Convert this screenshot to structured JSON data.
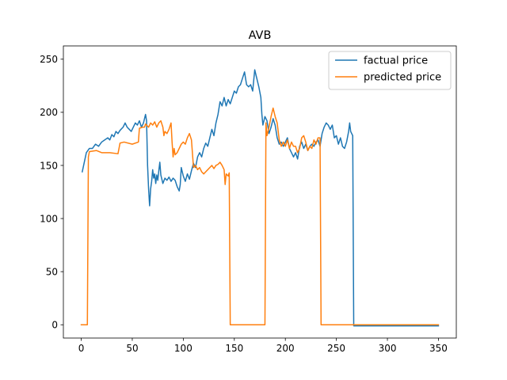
{
  "chart_data": {
    "type": "line",
    "title": "AVB",
    "xlabel": "",
    "ylabel": "",
    "xlim": [
      -17.5,
      367.5
    ],
    "ylim": [
      -12.5,
      262.5
    ],
    "xticks": [
      0,
      50,
      100,
      150,
      200,
      250,
      300,
      350
    ],
    "yticks": [
      0,
      50,
      100,
      150,
      200,
      250
    ],
    "legend": "top-right",
    "grid": false,
    "series": [
      {
        "name": "factual price",
        "color": "#1f77b4",
        "points": [
          [
            1,
            144
          ],
          [
            3,
            153
          ],
          [
            5,
            162
          ],
          [
            8,
            166
          ],
          [
            11,
            166
          ],
          [
            14,
            170
          ],
          [
            17,
            168
          ],
          [
            20,
            172
          ],
          [
            23,
            174
          ],
          [
            26,
            176
          ],
          [
            28,
            174
          ],
          [
            30,
            179
          ],
          [
            32,
            177
          ],
          [
            34,
            182
          ],
          [
            36,
            180
          ],
          [
            38,
            183
          ],
          [
            41,
            186
          ],
          [
            43,
            190
          ],
          [
            45,
            186
          ],
          [
            47,
            184
          ],
          [
            49,
            182
          ],
          [
            51,
            186
          ],
          [
            53,
            190
          ],
          [
            55,
            188
          ],
          [
            57,
            192
          ],
          [
            59,
            186
          ],
          [
            61,
            190
          ],
          [
            63,
            198
          ],
          [
            64,
            192
          ],
          [
            65,
            150
          ],
          [
            66,
            128
          ],
          [
            67,
            112
          ],
          [
            68,
            128
          ],
          [
            69,
            135
          ],
          [
            70,
            146
          ],
          [
            71,
            138
          ],
          [
            72,
            142
          ],
          [
            73,
            133
          ],
          [
            74,
            141
          ],
          [
            75,
            136
          ],
          [
            76,
            145
          ],
          [
            77,
            153
          ],
          [
            78,
            141
          ],
          [
            79,
            137
          ],
          [
            80,
            133
          ],
          [
            82,
            138
          ],
          [
            84,
            136
          ],
          [
            86,
            139
          ],
          [
            88,
            135
          ],
          [
            90,
            138
          ],
          [
            92,
            136
          ],
          [
            94,
            130
          ],
          [
            96,
            126
          ],
          [
            97,
            132
          ],
          [
            98,
            148
          ],
          [
            100,
            140
          ],
          [
            102,
            135
          ],
          [
            104,
            142
          ],
          [
            106,
            137
          ],
          [
            108,
            145
          ],
          [
            110,
            152
          ],
          [
            112,
            148
          ],
          [
            114,
            158
          ],
          [
            116,
            162
          ],
          [
            118,
            158
          ],
          [
            120,
            166
          ],
          [
            122,
            171
          ],
          [
            124,
            168
          ],
          [
            126,
            176
          ],
          [
            128,
            184
          ],
          [
            130,
            178
          ],
          [
            132,
            190
          ],
          [
            134,
            198
          ],
          [
            136,
            210
          ],
          [
            138,
            206
          ],
          [
            140,
            214
          ],
          [
            142,
            206
          ],
          [
            144,
            212
          ],
          [
            146,
            208
          ],
          [
            148,
            214
          ],
          [
            150,
            220
          ],
          [
            152,
            218
          ],
          [
            154,
            224
          ],
          [
            156,
            226
          ],
          [
            158,
            232
          ],
          [
            160,
            238
          ],
          [
            162,
            226
          ],
          [
            164,
            224
          ],
          [
            166,
            226
          ],
          [
            168,
            220
          ],
          [
            170,
            240
          ],
          [
            172,
            232
          ],
          [
            174,
            224
          ],
          [
            176,
            214
          ],
          [
            177,
            198
          ],
          [
            178,
            188
          ],
          [
            180,
            196
          ],
          [
            182,
            192
          ],
          [
            184,
            180
          ],
          [
            186,
            186
          ],
          [
            188,
            194
          ],
          [
            190,
            188
          ],
          [
            192,
            176
          ],
          [
            194,
            170
          ],
          [
            196,
            172
          ],
          [
            198,
            168
          ],
          [
            200,
            172
          ],
          [
            202,
            176
          ],
          [
            204,
            166
          ],
          [
            206,
            162
          ],
          [
            208,
            158
          ],
          [
            210,
            162
          ],
          [
            212,
            156
          ],
          [
            214,
            168
          ],
          [
            216,
            172
          ],
          [
            218,
            166
          ],
          [
            220,
            170
          ],
          [
            222,
            164
          ],
          [
            224,
            168
          ],
          [
            226,
            170
          ],
          [
            228,
            168
          ],
          [
            230,
            172
          ],
          [
            232,
            174
          ],
          [
            234,
            168
          ],
          [
            236,
            180
          ],
          [
            238,
            186
          ],
          [
            240,
            190
          ],
          [
            242,
            188
          ],
          [
            244,
            184
          ],
          [
            246,
            188
          ],
          [
            248,
            176
          ],
          [
            250,
            178
          ],
          [
            252,
            170
          ],
          [
            254,
            176
          ],
          [
            256,
            168
          ],
          [
            258,
            166
          ],
          [
            260,
            172
          ],
          [
            262,
            182
          ],
          [
            263,
            190
          ],
          [
            264,
            182
          ],
          [
            265,
            180
          ],
          [
            266,
            178
          ],
          [
            267,
            -1
          ],
          [
            350,
            -1
          ]
        ]
      },
      {
        "name": "predicted price",
        "color": "#ff7f0e",
        "points": [
          [
            0,
            0
          ],
          [
            6,
            0
          ],
          [
            7,
            158
          ],
          [
            8,
            163
          ],
          [
            15,
            164
          ],
          [
            20,
            162
          ],
          [
            28,
            162
          ],
          [
            36,
            161
          ],
          [
            37,
            166
          ],
          [
            38,
            171
          ],
          [
            42,
            172
          ],
          [
            50,
            170
          ],
          [
            56,
            172
          ],
          [
            57,
            185
          ],
          [
            60,
            186
          ],
          [
            62,
            186
          ],
          [
            63,
            189
          ],
          [
            66,
            186
          ],
          [
            68,
            190
          ],
          [
            70,
            188
          ],
          [
            72,
            191
          ],
          [
            74,
            186
          ],
          [
            76,
            190
          ],
          [
            78,
            192
          ],
          [
            80,
            186
          ],
          [
            81,
            178
          ],
          [
            82,
            182
          ],
          [
            84,
            180
          ],
          [
            86,
            184
          ],
          [
            88,
            190
          ],
          [
            89,
            172
          ],
          [
            90,
            158
          ],
          [
            91,
            166
          ],
          [
            92,
            160
          ],
          [
            94,
            162
          ],
          [
            96,
            166
          ],
          [
            98,
            170
          ],
          [
            100,
            172
          ],
          [
            102,
            170
          ],
          [
            104,
            176
          ],
          [
            106,
            180
          ],
          [
            108,
            174
          ],
          [
            110,
            148
          ],
          [
            112,
            150
          ],
          [
            114,
            146
          ],
          [
            116,
            148
          ],
          [
            118,
            144
          ],
          [
            120,
            142
          ],
          [
            122,
            144
          ],
          [
            124,
            146
          ],
          [
            126,
            148
          ],
          [
            128,
            150
          ],
          [
            130,
            147
          ],
          [
            132,
            150
          ],
          [
            134,
            151
          ],
          [
            136,
            153
          ],
          [
            138,
            150
          ],
          [
            140,
            146
          ],
          [
            141,
            132
          ],
          [
            142,
            142
          ],
          [
            144,
            140
          ],
          [
            145,
            143
          ],
          [
            146,
            0
          ],
          [
            180,
            0
          ],
          [
            181,
            190
          ],
          [
            182,
            178
          ],
          [
            184,
            186
          ],
          [
            186,
            196
          ],
          [
            188,
            204
          ],
          [
            190,
            196
          ],
          [
            192,
            190
          ],
          [
            194,
            174
          ],
          [
            196,
            168
          ],
          [
            198,
            172
          ],
          [
            200,
            168
          ],
          [
            202,
            174
          ],
          [
            204,
            166
          ],
          [
            206,
            172
          ],
          [
            208,
            168
          ],
          [
            210,
            168
          ],
          [
            212,
            162
          ],
          [
            214,
            166
          ],
          [
            216,
            176
          ],
          [
            218,
            178
          ],
          [
            220,
            172
          ],
          [
            222,
            164
          ],
          [
            224,
            168
          ],
          [
            226,
            166
          ],
          [
            228,
            174
          ],
          [
            230,
            170
          ],
          [
            232,
            176
          ],
          [
            234,
            176
          ],
          [
            235,
            0
          ],
          [
            350,
            0
          ]
        ]
      }
    ]
  }
}
